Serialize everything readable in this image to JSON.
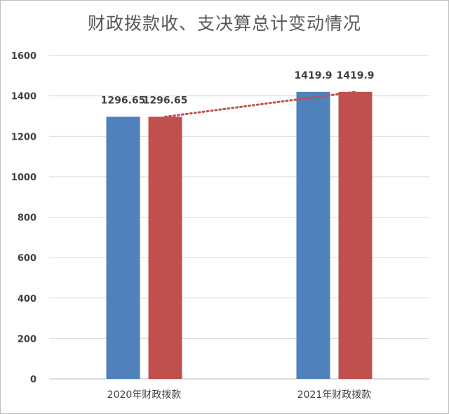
{
  "chart_data": {
    "type": "bar",
    "title": "财政拨款收、支决算总计变动情况",
    "xlabel": "",
    "ylabel": "",
    "categories": [
      "2020年财政拨款",
      "2021年财政拨款"
    ],
    "series": [
      {
        "color": "#4f81bd",
        "values": [
          1296.65,
          1419.9
        ]
      },
      {
        "color": "#c0504d",
        "values": [
          1296.65,
          1419.9
        ]
      }
    ],
    "data_labels": [
      [
        "1296.65",
        "1419.9"
      ],
      [
        "1296.65",
        "1419.9"
      ]
    ],
    "trendline": {
      "series_index": 1,
      "style": "dotted",
      "color": "#c0504d"
    },
    "ylim": [
      0,
      1600
    ],
    "yticks": [
      0,
      200,
      400,
      600,
      800,
      1000,
      1200,
      1400,
      1600
    ],
    "grid": true,
    "legend": "none"
  }
}
